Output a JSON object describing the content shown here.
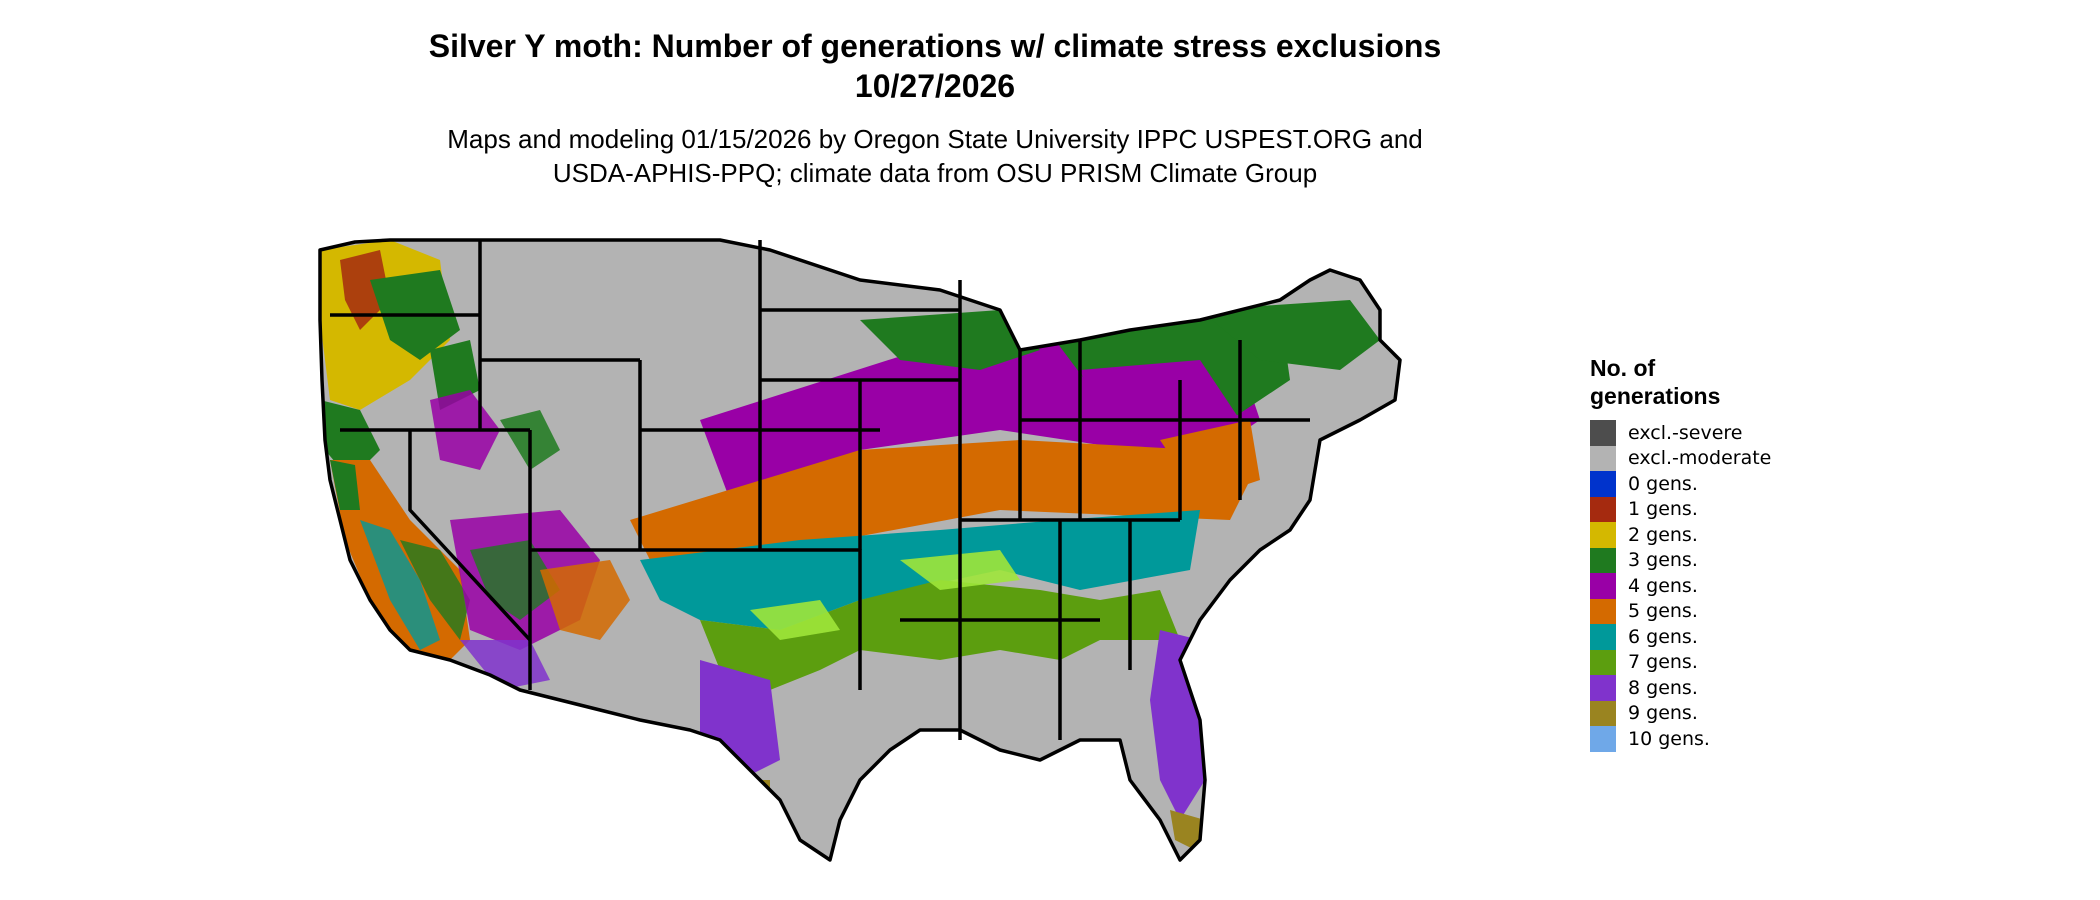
{
  "header": {
    "title_line1": "Silver Y moth: Number of generations w/ climate stress exclusions",
    "title_line2": "10/27/2026",
    "subtitle_line1": "Maps and modeling 01/15/2026 by Oregon State University IPPC USPEST.ORG and",
    "subtitle_line2": "USDA-APHIS-PPQ; climate data from OSU PRISM Climate Group"
  },
  "legend": {
    "title_line1": "No. of",
    "title_line2": "generations",
    "items": [
      {
        "label": "excl.-severe",
        "color": "#4d4d4d"
      },
      {
        "label": "excl.-moderate",
        "color": "#b3b3b3"
      },
      {
        "label": "0 gens.",
        "color": "#0033cc"
      },
      {
        "label": "1 gens.",
        "color": "#a52a0f"
      },
      {
        "label": "2 gens.",
        "color": "#d4b800"
      },
      {
        "label": "3 gens.",
        "color": "#1f7a1f"
      },
      {
        "label": "4 gens.",
        "color": "#9900a6"
      },
      {
        "label": "5 gens.",
        "color": "#d46a00"
      },
      {
        "label": "6 gens.",
        "color": "#00999a"
      },
      {
        "label": "7 gens.",
        "color": "#5c9e0f"
      },
      {
        "label": "8 gens.",
        "color": "#8033cc"
      },
      {
        "label": "9 gens.",
        "color": "#9a8420"
      },
      {
        "label": "10 gens.",
        "color": "#6fa8e8"
      }
    ]
  }
}
